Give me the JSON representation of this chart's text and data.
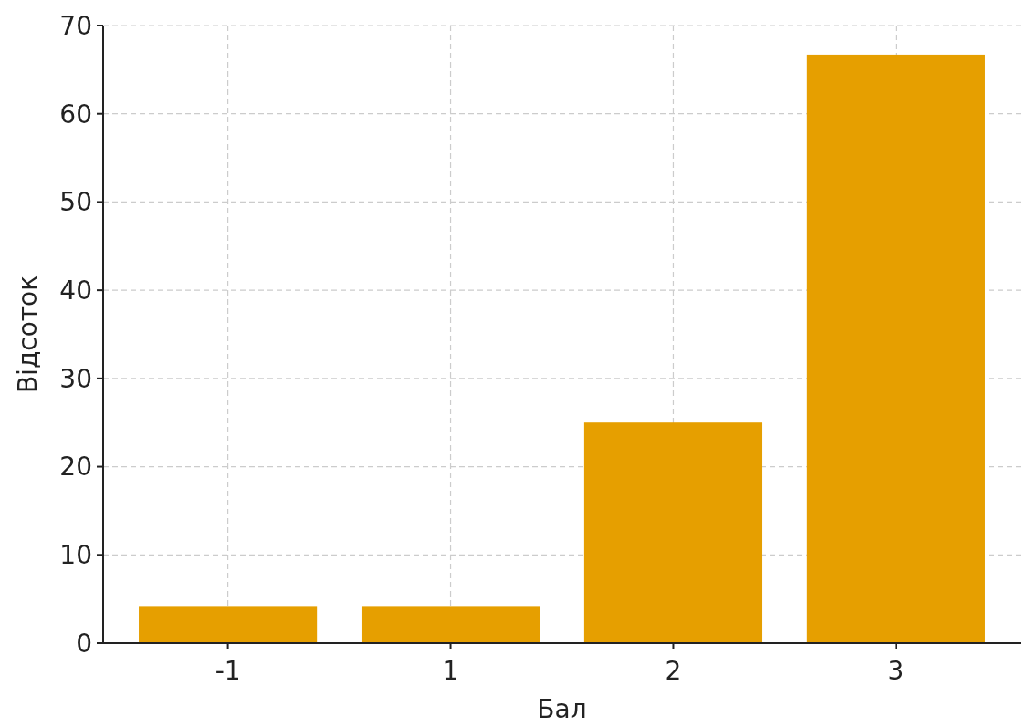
{
  "chart_data": {
    "type": "bar",
    "xlabel": "Бал",
    "ylabel": "Відсоток",
    "categories": [
      "-1",
      "1",
      "2",
      "3"
    ],
    "series": [
      {
        "color": "#e69f00",
        "values": [
          4.2,
          4.2,
          25,
          66.7
        ]
      }
    ],
    "ylim": [
      0,
      70
    ],
    "yticks": [
      0,
      10,
      20,
      30,
      40,
      50,
      60,
      70
    ],
    "grid": true
  }
}
